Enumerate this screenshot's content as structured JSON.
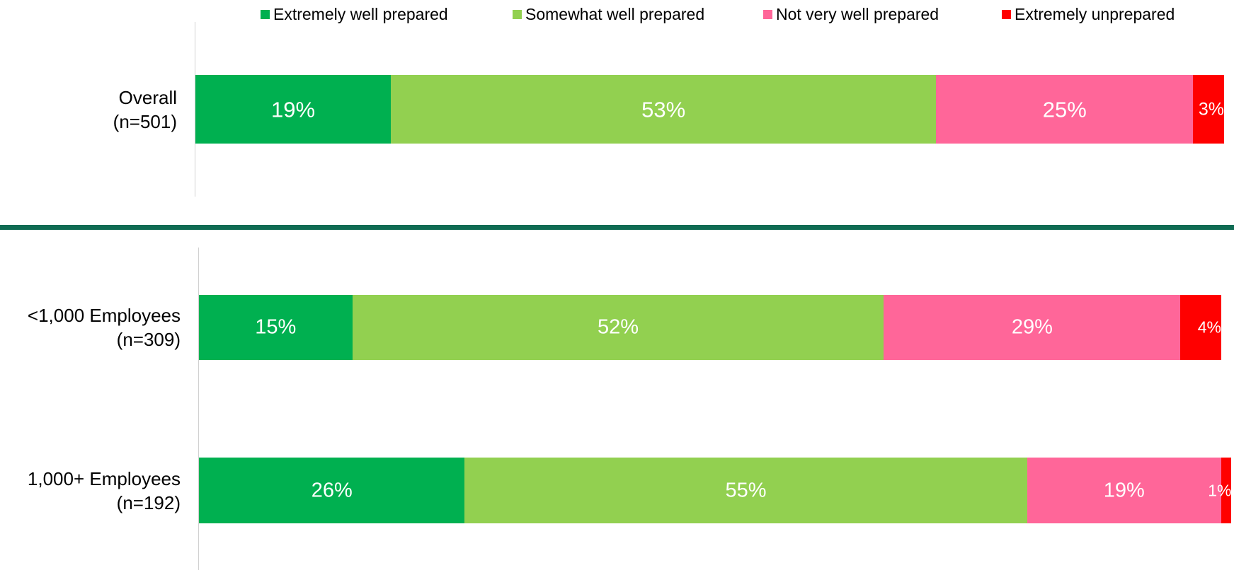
{
  "chart_data": [
    {
      "type": "stacked_bar_horizontal",
      "categories": [
        "Overall\n(n=501)"
      ],
      "series": [
        {
          "name": "Extremely well prepared",
          "color": "#00b050",
          "values": [
            19
          ],
          "value_labels": [
            "19%"
          ]
        },
        {
          "name": "Somewhat well prepared",
          "color": "#92d050",
          "values": [
            53
          ],
          "value_labels": [
            "53%"
          ]
        },
        {
          "name": "Not very well prepared",
          "color": "#ff6699",
          "values": [
            25
          ],
          "value_labels": [
            "25%"
          ]
        },
        {
          "name": "Extremely unprepared",
          "color": "#ff0000",
          "values": [
            3
          ],
          "value_labels": [
            "3%"
          ]
        }
      ],
      "xlim": [
        0,
        100
      ],
      "legend": "top"
    },
    {
      "type": "stacked_bar_horizontal",
      "categories": [
        "<1,000 Employees\n(n=309)",
        "1,000+ Employees\n(n=192)"
      ],
      "series": [
        {
          "color": "#00b050",
          "values": [
            15,
            26
          ],
          "value_labels": [
            "15%",
            "26%"
          ]
        },
        {
          "color": "#92d050",
          "values": [
            52,
            55
          ],
          "value_labels": [
            "52%",
            "55%"
          ]
        },
        {
          "color": "#ff6699",
          "values": [
            29,
            19
          ],
          "value_labels": [
            "29%",
            "19%"
          ]
        },
        {
          "color": "#ff0000",
          "values": [
            4,
            1
          ],
          "value_labels": [
            "4%",
            "1%"
          ]
        }
      ],
      "xlim": [
        0,
        100
      ]
    }
  ]
}
